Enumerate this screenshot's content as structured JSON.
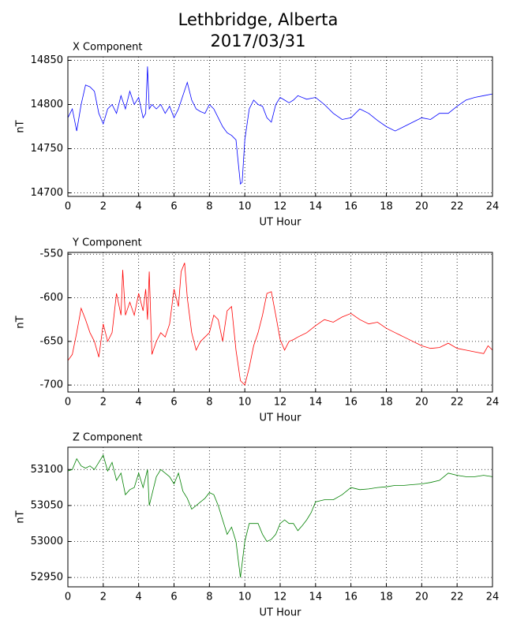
{
  "title": "Lethbridge, Alberta",
  "subtitle": "2017/03/31",
  "chart_data": [
    {
      "type": "line",
      "title": "X Component",
      "x_label": "UT Hour",
      "y_label": "nT",
      "color": "#0000ff",
      "grid": true,
      "xlim": [
        0,
        24
      ],
      "xticks": [
        0,
        2,
        4,
        6,
        8,
        10,
        12,
        14,
        16,
        18,
        20,
        22,
        24
      ],
      "ylim": [
        14696,
        14854
      ],
      "yticks": [
        14700,
        14750,
        14800,
        14850
      ],
      "x": [
        0,
        0.25,
        0.5,
        0.75,
        1,
        1.25,
        1.5,
        1.75,
        2,
        2.25,
        2.5,
        2.75,
        3,
        3.25,
        3.5,
        3.75,
        4,
        4.25,
        4.4,
        4.5,
        4.6,
        4.75,
        5,
        5.25,
        5.5,
        5.75,
        6,
        6.25,
        6.5,
        6.75,
        7,
        7.25,
        7.5,
        7.75,
        8,
        8.25,
        8.5,
        8.75,
        9,
        9.25,
        9.5,
        9.6,
        9.75,
        9.85,
        10,
        10.25,
        10.5,
        10.75,
        11,
        11.25,
        11.5,
        11.75,
        12,
        12.25,
        12.5,
        12.75,
        13,
        13.5,
        14,
        14.5,
        15,
        15.5,
        16,
        16.5,
        17,
        17.5,
        18,
        18.5,
        19,
        19.5,
        20,
        20.5,
        21,
        21.5,
        22,
        22.5,
        23,
        23.5,
        24
      ],
      "values": [
        14785,
        14795,
        14770,
        14800,
        14822,
        14820,
        14815,
        14790,
        14778,
        14795,
        14800,
        14790,
        14810,
        14795,
        14815,
        14800,
        14808,
        14785,
        14790,
        14843,
        14795,
        14800,
        14795,
        14800,
        14790,
        14798,
        14785,
        14795,
        14810,
        14825,
        14805,
        14795,
        14792,
        14790,
        14800,
        14795,
        14785,
        14775,
        14768,
        14765,
        14760,
        14740,
        14710,
        14712,
        14760,
        14795,
        14805,
        14800,
        14798,
        14785,
        14780,
        14800,
        14808,
        14805,
        14802,
        14805,
        14810,
        14806,
        14808,
        14800,
        14790,
        14783,
        14785,
        14795,
        14790,
        14782,
        14775,
        14770,
        14775,
        14780,
        14785,
        14783,
        14790,
        14790,
        14798,
        14805,
        14808,
        14810,
        14812
      ]
    },
    {
      "type": "line",
      "title": "Y Component",
      "x_label": "UT Hour",
      "y_label": "nT",
      "color": "#ff0000",
      "grid": true,
      "xlim": [
        0,
        24
      ],
      "xticks": [
        0,
        2,
        4,
        6,
        8,
        10,
        12,
        14,
        16,
        18,
        20,
        22,
        24
      ],
      "ylim": [
        -708,
        -548
      ],
      "yticks": [
        -700,
        -650,
        -600,
        -550
      ],
      "x": [
        0,
        0.25,
        0.5,
        0.75,
        1,
        1.25,
        1.5,
        1.75,
        2,
        2.25,
        2.5,
        2.75,
        3,
        3.1,
        3.25,
        3.5,
        3.75,
        4,
        4.25,
        4.4,
        4.5,
        4.6,
        4.75,
        5,
        5.25,
        5.5,
        5.75,
        6,
        6.25,
        6.4,
        6.6,
        6.75,
        7,
        7.25,
        7.5,
        7.75,
        8,
        8.25,
        8.5,
        8.75,
        9,
        9.25,
        9.5,
        9.75,
        10,
        10.25,
        10.5,
        10.75,
        11,
        11.25,
        11.5,
        11.75,
        12,
        12.25,
        12.5,
        12.75,
        13,
        13.5,
        14,
        14.5,
        15,
        15.5,
        16,
        16.5,
        17,
        17.5,
        18,
        18.5,
        19,
        19.5,
        20,
        20.5,
        21,
        21.5,
        22,
        22.5,
        23,
        23.5,
        23.75,
        24
      ],
      "values": [
        -672,
        -665,
        -640,
        -612,
        -625,
        -640,
        -650,
        -668,
        -630,
        -650,
        -640,
        -595,
        -620,
        -568,
        -620,
        -605,
        -620,
        -595,
        -615,
        -590,
        -625,
        -570,
        -665,
        -650,
        -640,
        -645,
        -630,
        -590,
        -610,
        -570,
        -560,
        -600,
        -640,
        -660,
        -650,
        -645,
        -640,
        -620,
        -625,
        -650,
        -615,
        -610,
        -660,
        -695,
        -700,
        -680,
        -655,
        -640,
        -620,
        -595,
        -593,
        -620,
        -648,
        -660,
        -650,
        -648,
        -645,
        -640,
        -632,
        -625,
        -628,
        -622,
        -618,
        -625,
        -630,
        -628,
        -635,
        -640,
        -645,
        -650,
        -655,
        -658,
        -657,
        -652,
        -658,
        -660,
        -662,
        -664,
        -655,
        -660
      ]
    },
    {
      "type": "line",
      "title": "Z Component",
      "x_label": "UT Hour",
      "y_label": "nT",
      "color": "#008000",
      "grid": true,
      "xlim": [
        0,
        24
      ],
      "xticks": [
        0,
        2,
        4,
        6,
        8,
        10,
        12,
        14,
        16,
        18,
        20,
        22,
        24
      ],
      "ylim": [
        52937,
        53131
      ],
      "yticks": [
        52950,
        53000,
        53050,
        53100
      ],
      "x": [
        0,
        0.25,
        0.5,
        0.75,
        1,
        1.25,
        1.5,
        1.75,
        2,
        2.25,
        2.5,
        2.75,
        3,
        3.25,
        3.5,
        3.75,
        4,
        4.25,
        4.5,
        4.6,
        4.75,
        5,
        5.25,
        5.5,
        5.75,
        6,
        6.25,
        6.5,
        6.75,
        7,
        7.25,
        7.5,
        7.75,
        8,
        8.25,
        8.5,
        8.75,
        9,
        9.25,
        9.5,
        9.75,
        10,
        10.25,
        10.5,
        10.75,
        11,
        11.25,
        11.5,
        11.75,
        12,
        12.25,
        12.5,
        12.75,
        13,
        13.25,
        13.5,
        13.75,
        14,
        14.5,
        15,
        15.5,
        16,
        16.5,
        17,
        17.5,
        18,
        18.5,
        19,
        19.5,
        20,
        20.5,
        21,
        21.25,
        21.5,
        22,
        22.5,
        23,
        23.5,
        24
      ],
      "values": [
        53098,
        53100,
        53115,
        53105,
        53102,
        53105,
        53100,
        53110,
        53120,
        53098,
        53110,
        53085,
        53095,
        53065,
        53072,
        53075,
        53095,
        53075,
        53100,
        53050,
        53065,
        53090,
        53100,
        53095,
        53090,
        53080,
        53095,
        53070,
        53060,
        53045,
        53050,
        53055,
        53060,
        53068,
        53065,
        53050,
        53030,
        53010,
        53020,
        53000,
        52950,
        53000,
        53025,
        53025,
        53025,
        53010,
        53000,
        53003,
        53010,
        53025,
        53030,
        53025,
        53025,
        53015,
        53022,
        53030,
        53040,
        53055,
        53058,
        53058,
        53065,
        53075,
        53072,
        53073,
        53075,
        53076,
        53078,
        53078,
        53079,
        53080,
        53082,
        53085,
        53090,
        53095,
        53092,
        53090,
        53090,
        53092,
        53090
      ]
    }
  ]
}
